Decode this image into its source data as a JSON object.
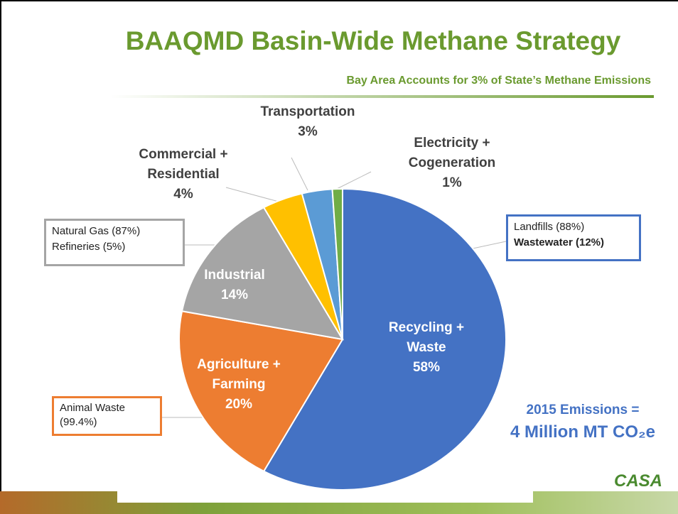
{
  "chart_data": {
    "type": "pie",
    "title": "BAAQMD Basin-Wide Methane Strategy",
    "subtitle": "Bay Area Accounts for 3% of State’s Methane Emissions",
    "categories": [
      "Recycling + Waste",
      "Agriculture + Farming",
      "Industrial",
      "Commercial + Residential",
      "Transportation",
      "Electricity + Cogeneration"
    ],
    "values": [
      58,
      20,
      14,
      4,
      3,
      1
    ],
    "value_labels": [
      "58%",
      "20%",
      "14%",
      "4%",
      "3%",
      "1%"
    ],
    "colors": [
      "#4472c4",
      "#ed7d31",
      "#a5a5a5",
      "#ffc000",
      "#5b9bd5",
      "#70ad47"
    ],
    "annotations": {
      "natural_gas": [
        "Natural Gas (87%)",
        "Refineries (5%)"
      ],
      "landfills": [
        "Landfills (88%)",
        "Wastewater (12%)"
      ],
      "animal_waste": [
        "Animal Waste",
        "(99.4%)"
      ],
      "emissions": [
        "2015 Emissions =",
        "4 Million MT CO₂e"
      ]
    },
    "logo": "CASA"
  }
}
